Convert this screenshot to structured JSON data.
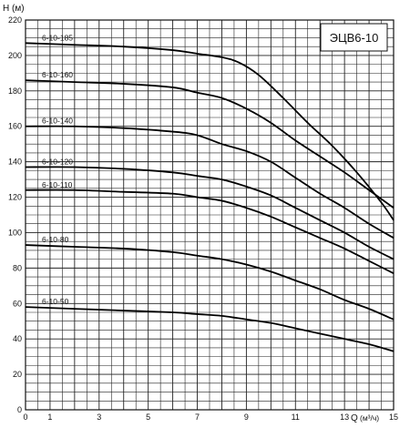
{
  "chart_data": {
    "type": "line",
    "title": "ЭЦВ6-10",
    "ylabel": "H (м)",
    "xlabel_prefix": "Q",
    "xlabel_unit": "(м³/ч)",
    "xlim": [
      0,
      15
    ],
    "ylim": [
      0,
      220
    ],
    "x_ticks": [
      {
        "value": 0,
        "label": "0"
      },
      {
        "value": 1,
        "label": "1"
      },
      {
        "value": 3,
        "label": "3"
      },
      {
        "value": 5,
        "label": "5"
      },
      {
        "value": 7,
        "label": "7"
      },
      {
        "value": 9,
        "label": "9"
      },
      {
        "value": 11,
        "label": "11"
      },
      {
        "value": 13,
        "label": "13"
      },
      {
        "value": 15,
        "label": "15"
      }
    ],
    "y_ticks": [
      {
        "value": 0,
        "label": "0"
      },
      {
        "value": 20,
        "label": "20"
      },
      {
        "value": 40,
        "label": "40"
      },
      {
        "value": 60,
        "label": "60"
      },
      {
        "value": 80,
        "label": "80"
      },
      {
        "value": 100,
        "label": "100"
      },
      {
        "value": 120,
        "label": "120"
      },
      {
        "value": 140,
        "label": "140"
      },
      {
        "value": 160,
        "label": "160"
      },
      {
        "value": 180,
        "label": "180"
      },
      {
        "value": 200,
        "label": "200"
      },
      {
        "value": 220,
        "label": "220"
      }
    ],
    "grid": {
      "x_step": 0.5,
      "y_step": 5,
      "visible": true
    },
    "series": [
      {
        "name": "6-10-185",
        "x": [
          0,
          2,
          4,
          6,
          7,
          8,
          8.7,
          9.5,
          10.5,
          11.5,
          12.5,
          13.5,
          14.5,
          15
        ],
        "y": [
          207,
          206,
          205,
          203,
          201,
          199,
          196,
          189,
          176,
          162,
          149,
          134,
          117,
          107
        ]
      },
      {
        "name": "6-10-160",
        "x": [
          0,
          2,
          4,
          6,
          7,
          8,
          9,
          10,
          11,
          12,
          13,
          14,
          15
        ],
        "y": [
          186,
          185,
          184,
          182,
          179,
          176,
          170,
          162,
          152,
          143,
          134,
          124,
          114
        ]
      },
      {
        "name": "6-10-140",
        "x": [
          0,
          2,
          4,
          6,
          7,
          8,
          9,
          10,
          11,
          12,
          13,
          14,
          15
        ],
        "y": [
          160,
          160,
          159,
          157,
          155,
          150,
          146,
          140,
          131,
          122,
          114,
          105,
          97
        ]
      },
      {
        "name": "6-10-120",
        "x": [
          0,
          2,
          4,
          6,
          7,
          8,
          9,
          10,
          11,
          12,
          13,
          14,
          15
        ],
        "y": [
          137,
          137,
          136,
          134,
          132,
          130,
          126,
          121,
          114,
          107,
          100,
          92,
          85
        ]
      },
      {
        "name": "6-10-110",
        "x": [
          0,
          2,
          4,
          6,
          7,
          8,
          9,
          10,
          11,
          12,
          13,
          14,
          15
        ],
        "y": [
          124,
          124,
          123,
          122,
          120,
          118,
          114,
          109,
          103,
          97,
          91,
          84,
          77
        ]
      },
      {
        "name": "6-10-80",
        "x": [
          0,
          2,
          4,
          6,
          7,
          8,
          9,
          10,
          11,
          12,
          13,
          14,
          15
        ],
        "y": [
          93,
          92,
          91,
          89,
          87,
          85,
          82,
          78,
          73,
          68,
          62,
          57,
          51
        ]
      },
      {
        "name": "6-10-50",
        "x": [
          0,
          2,
          4,
          6,
          7,
          8,
          9,
          10,
          11,
          12,
          13,
          14,
          15
        ],
        "y": [
          58,
          57,
          56,
          55,
          54,
          53,
          51,
          49,
          46,
          43,
          40,
          37,
          33
        ]
      }
    ]
  }
}
